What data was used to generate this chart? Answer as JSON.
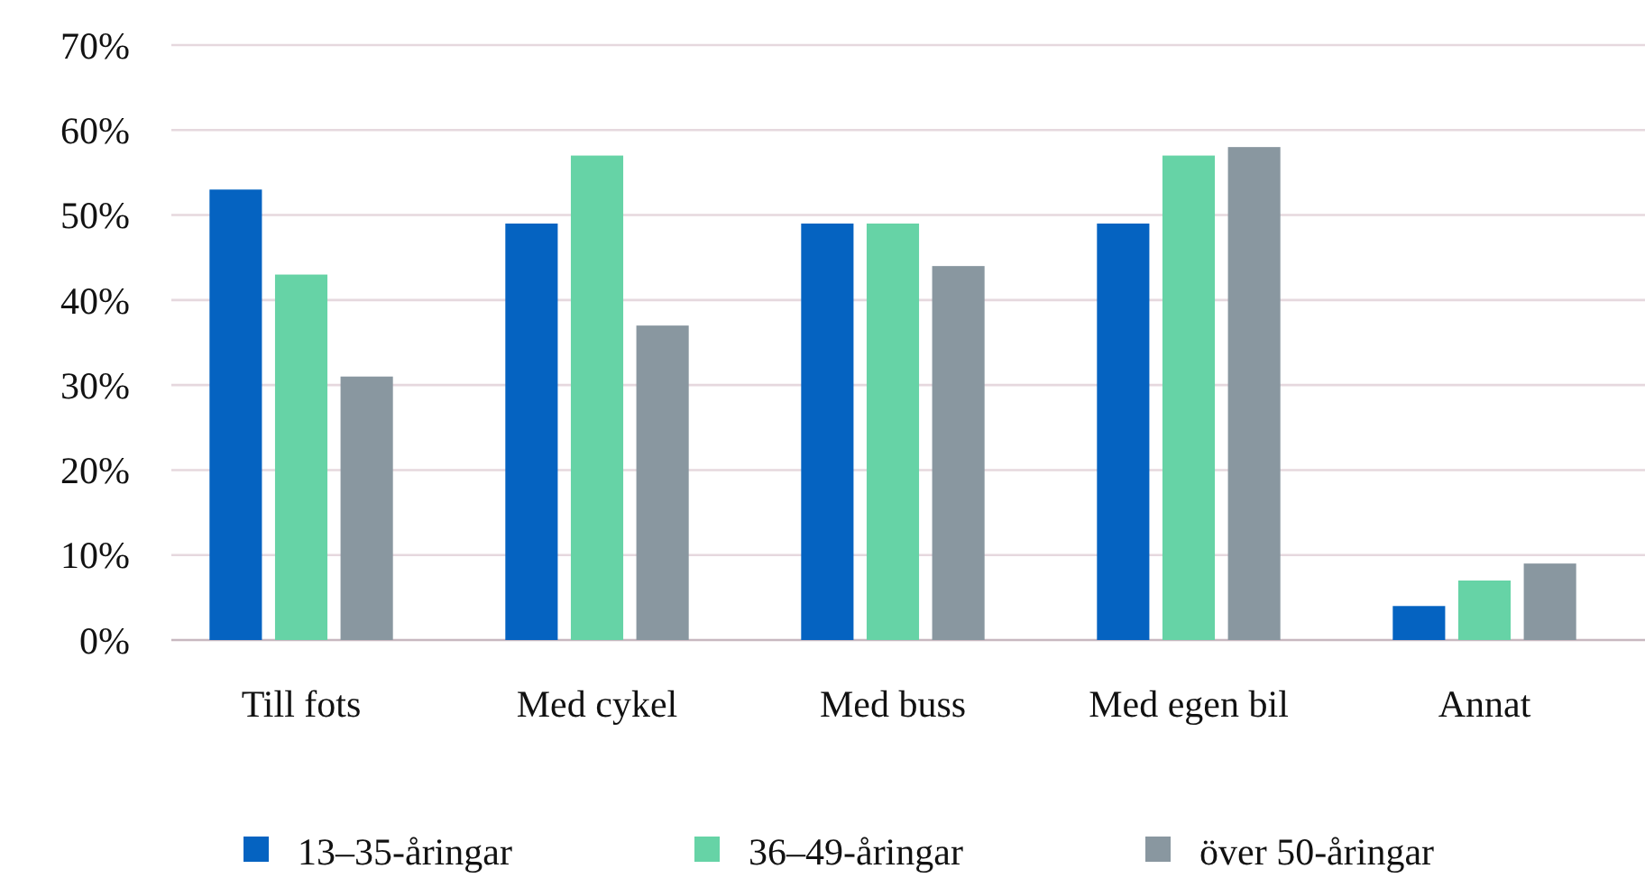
{
  "chart_data": {
    "type": "bar",
    "categories": [
      "Till fots",
      "Med cykel",
      "Med buss",
      "Med egen bil",
      "Annat"
    ],
    "series": [
      {
        "name": "13–35-åringar",
        "color": "#0563c1",
        "values": [
          53,
          49,
          49,
          49,
          4
        ]
      },
      {
        "name": "36–49-åringar",
        "color": "#66d3a6",
        "values": [
          43,
          57,
          49,
          57,
          7
        ]
      },
      {
        "name": "över 50-åringar",
        "color": "#8997a0",
        "values": [
          31,
          37,
          44,
          58,
          9
        ]
      }
    ],
    "ylim": [
      0,
      70
    ],
    "yticks": [
      {
        "value": 0,
        "label": "0%"
      },
      {
        "value": 10,
        "label": "10%"
      },
      {
        "value": 20,
        "label": "20%"
      },
      {
        "value": 30,
        "label": "30%"
      },
      {
        "value": 40,
        "label": "40%"
      },
      {
        "value": 50,
        "label": "50%"
      },
      {
        "value": 60,
        "label": "60%"
      },
      {
        "value": 70,
        "label": "70%"
      }
    ],
    "grid": "y",
    "legend": "bottom"
  }
}
